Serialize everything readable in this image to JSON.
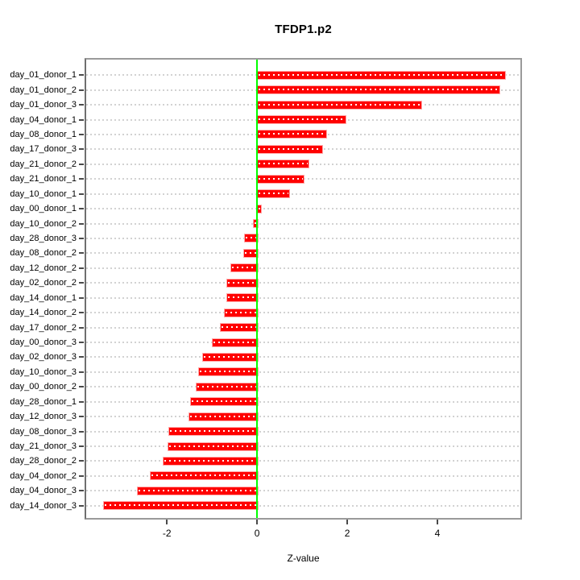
{
  "chart_data": {
    "type": "bar",
    "orientation": "horizontal",
    "title": "TFDP1.p2",
    "xlabel": "Z-value",
    "ylabel": "",
    "legend": "none",
    "grid": "horizontal-dotted",
    "xlim": [
      -3.79,
      5.84
    ],
    "xticks": [
      "-2",
      "0",
      "2",
      "4"
    ],
    "xtick_values": [
      -2,
      0,
      2,
      4
    ],
    "zero_line_value": 0,
    "categories": [
      "day_01_donor_1",
      "day_01_donor_2",
      "day_01_donor_3",
      "day_04_donor_1",
      "day_08_donor_1",
      "day_17_donor_3",
      "day_21_donor_2",
      "day_21_donor_1",
      "day_10_donor_1",
      "day_00_donor_1",
      "day_10_donor_2",
      "day_28_donor_3",
      "day_08_donor_2",
      "day_12_donor_2",
      "day_02_donor_2",
      "day_14_donor_1",
      "day_14_donor_2",
      "day_17_donor_2",
      "day_00_donor_3",
      "day_02_donor_3",
      "day_10_donor_3",
      "day_00_donor_2",
      "day_28_donor_1",
      "day_12_donor_3",
      "day_08_donor_3",
      "day_21_donor_3",
      "day_28_donor_2",
      "day_04_donor_2",
      "day_04_donor_3",
      "day_14_donor_3"
    ],
    "values": [
      5.49,
      5.35,
      3.62,
      1.94,
      1.51,
      1.42,
      1.13,
      1.01,
      0.7,
      0.07,
      -0.09,
      -0.28,
      -0.31,
      -0.6,
      -0.68,
      -0.68,
      -0.73,
      -0.83,
      -1.0,
      -1.21,
      -1.3,
      -1.36,
      -1.49,
      -1.52,
      -1.97,
      -1.99,
      -2.1,
      -2.38,
      -2.67,
      -3.42
    ],
    "colors": {
      "bar_fill": "#ff0000",
      "bar_border": "#ffaaaa",
      "zero_line": "#00ff00",
      "gridline": "#d2d2d2",
      "box_border": "#9a9a9a",
      "tick": "#4a4a4a",
      "text": "#000000",
      "background": "#ffffff"
    }
  }
}
